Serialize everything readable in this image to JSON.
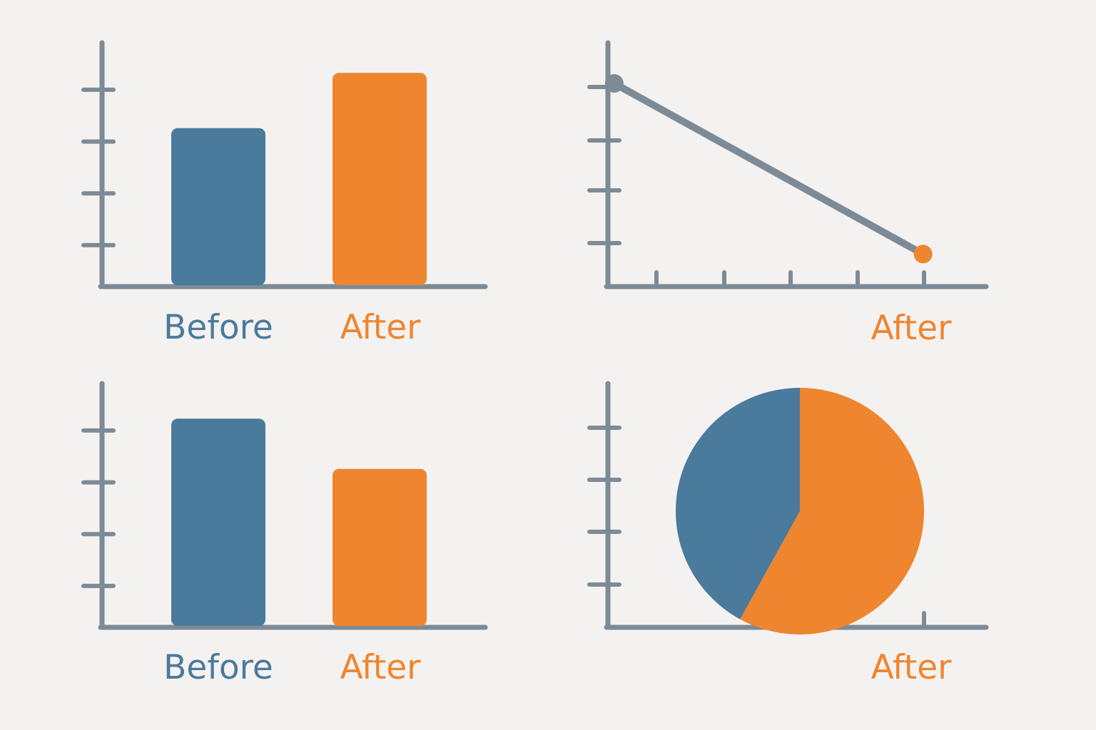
{
  "colors": {
    "before": "#4a7a9c",
    "after": "#ef852f",
    "axis": "#7c8b96",
    "background": "#f4f2f0"
  },
  "chart_data": [
    {
      "type": "bar",
      "position": "top-left",
      "categories": [
        "Before",
        "After"
      ],
      "values": [
        3.1,
        4.2
      ],
      "ylim": [
        0,
        4.8
      ],
      "yticks": 4,
      "tick_labels": false,
      "grid": false
    },
    {
      "type": "line",
      "position": "top-right",
      "x": [
        0.1,
        5
      ],
      "y": [
        3.75,
        0.6
      ],
      "xlim": [
        0,
        6
      ],
      "ylim": [
        0,
        4.5
      ],
      "xticks": 5,
      "yticks": 4,
      "point_colors": [
        "axis",
        "after"
      ],
      "x_caption": "After",
      "grid": false
    },
    {
      "type": "bar",
      "position": "bottom-left",
      "categories": [
        "Before",
        "After"
      ],
      "values": [
        4.1,
        3.1
      ],
      "ylim": [
        0,
        4.8
      ],
      "yticks": 4,
      "tick_labels": false,
      "grid": false
    },
    {
      "type": "pie",
      "position": "bottom-right",
      "slices": [
        {
          "color": "before",
          "percent": 42
        },
        {
          "color": "after",
          "percent": 58
        }
      ],
      "yticks": 4,
      "xticks": 1,
      "x_caption": "After",
      "grid": false
    }
  ]
}
